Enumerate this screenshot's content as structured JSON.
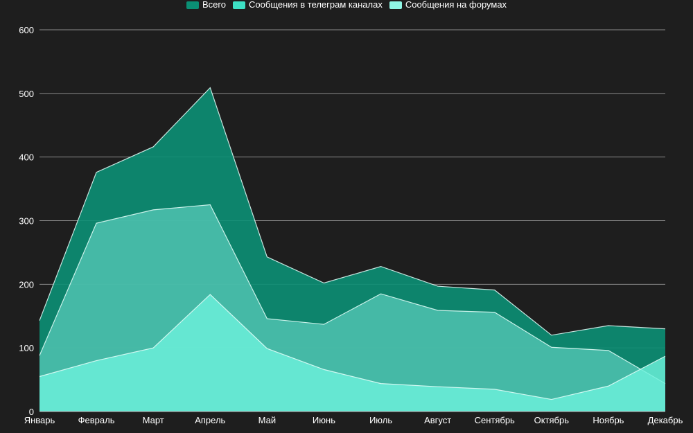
{
  "chart_data": {
    "type": "area",
    "categories": [
      "Январь",
      "Февраль",
      "Март",
      "Апрель",
      "Май",
      "Июнь",
      "Июль",
      "Август",
      "Сентябрь",
      "Октябрь",
      "Ноябрь",
      "Декабрь"
    ],
    "series": [
      {
        "name": "Всего",
        "color": "#0b8f74",
        "values": [
          143,
          376,
          416,
          509,
          243,
          202,
          228,
          197,
          191,
          120,
          135,
          130
        ]
      },
      {
        "name": "Сообщения в телеграм каналах",
        "color": "#56c8b6",
        "values": [
          88,
          296,
          317,
          325,
          146,
          137,
          185,
          159,
          156,
          101,
          96,
          44
        ]
      },
      {
        "name": "Сообщения на форумах",
        "color": "#6cf2dc",
        "values": [
          55,
          80,
          100,
          184,
          99,
          66,
          44,
          39,
          35,
          19,
          40,
          87
        ]
      }
    ],
    "yticks": [
      0,
      100,
      200,
      300,
      400,
      500,
      600
    ],
    "ylim": [
      0,
      600
    ],
    "grid": true,
    "legend_position": "top-center",
    "title": "",
    "xlabel": "",
    "ylabel": ""
  }
}
